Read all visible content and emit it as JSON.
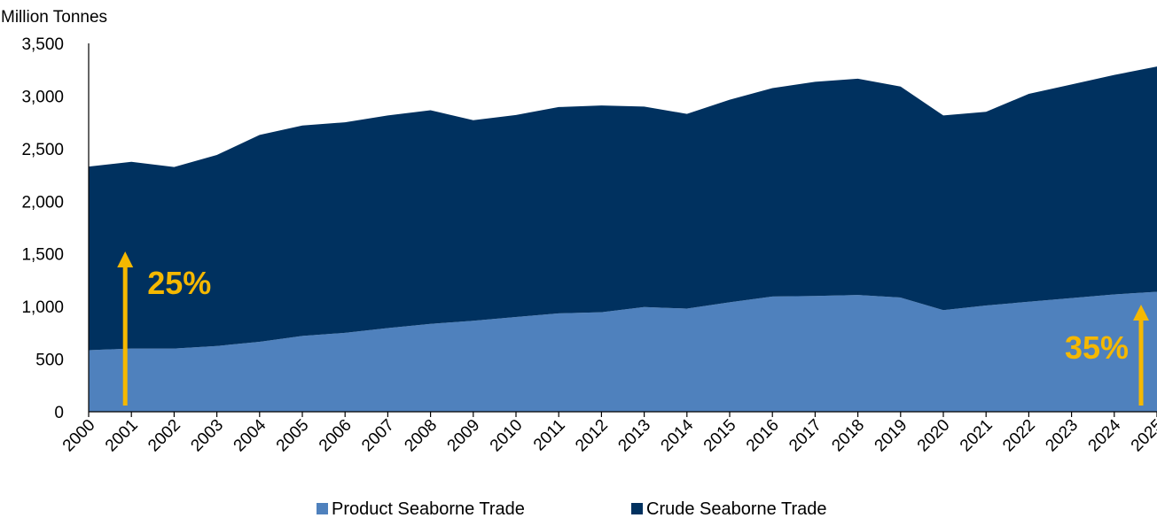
{
  "chart_data": {
    "type": "area",
    "stacked": true,
    "ylabel": "Million Tonnes",
    "ylim": [
      0,
      3500
    ],
    "yticks": [
      0,
      500,
      1000,
      1500,
      2000,
      2500,
      3000,
      3500
    ],
    "ytick_labels": [
      "0",
      "500",
      "1,000",
      "1,500",
      "2,000",
      "2,500",
      "3,000",
      "3,500"
    ],
    "x": [
      "2000",
      "2001",
      "2002",
      "2003",
      "2004",
      "2005",
      "2006",
      "2007",
      "2008",
      "2009",
      "2010",
      "2011",
      "2012",
      "2013",
      "2014",
      "2015",
      "2016",
      "2017",
      "2018",
      "2019",
      "2020",
      "2021",
      "2022",
      "2023",
      "2024",
      "2025"
    ],
    "series": [
      {
        "name": "Product Seaborne Trade",
        "color": "#4f81bd",
        "values": [
          585,
          600,
          600,
          625,
          665,
          720,
          750,
          795,
          835,
          865,
          900,
          935,
          945,
          995,
          980,
          1040,
          1095,
          1100,
          1110,
          1085,
          965,
          1010,
          1045,
          1080,
          1115,
          1140
        ]
      },
      {
        "name": "Crude Seaborne Trade",
        "color": "#00315f",
        "values": [
          1745,
          1775,
          1725,
          1815,
          1965,
          2000,
          2000,
          2020,
          2030,
          1905,
          1920,
          1960,
          1965,
          1905,
          1850,
          1925,
          1980,
          2035,
          2055,
          2005,
          1850,
          1840,
          1975,
          2030,
          2085,
          2140
        ]
      }
    ],
    "annotations": [
      {
        "text": "25%",
        "year": "2001",
        "color": "#f5b800"
      },
      {
        "text": "35%",
        "year": "2025",
        "color": "#f5b800"
      }
    ],
    "legend_position": "bottom",
    "grid": false
  }
}
